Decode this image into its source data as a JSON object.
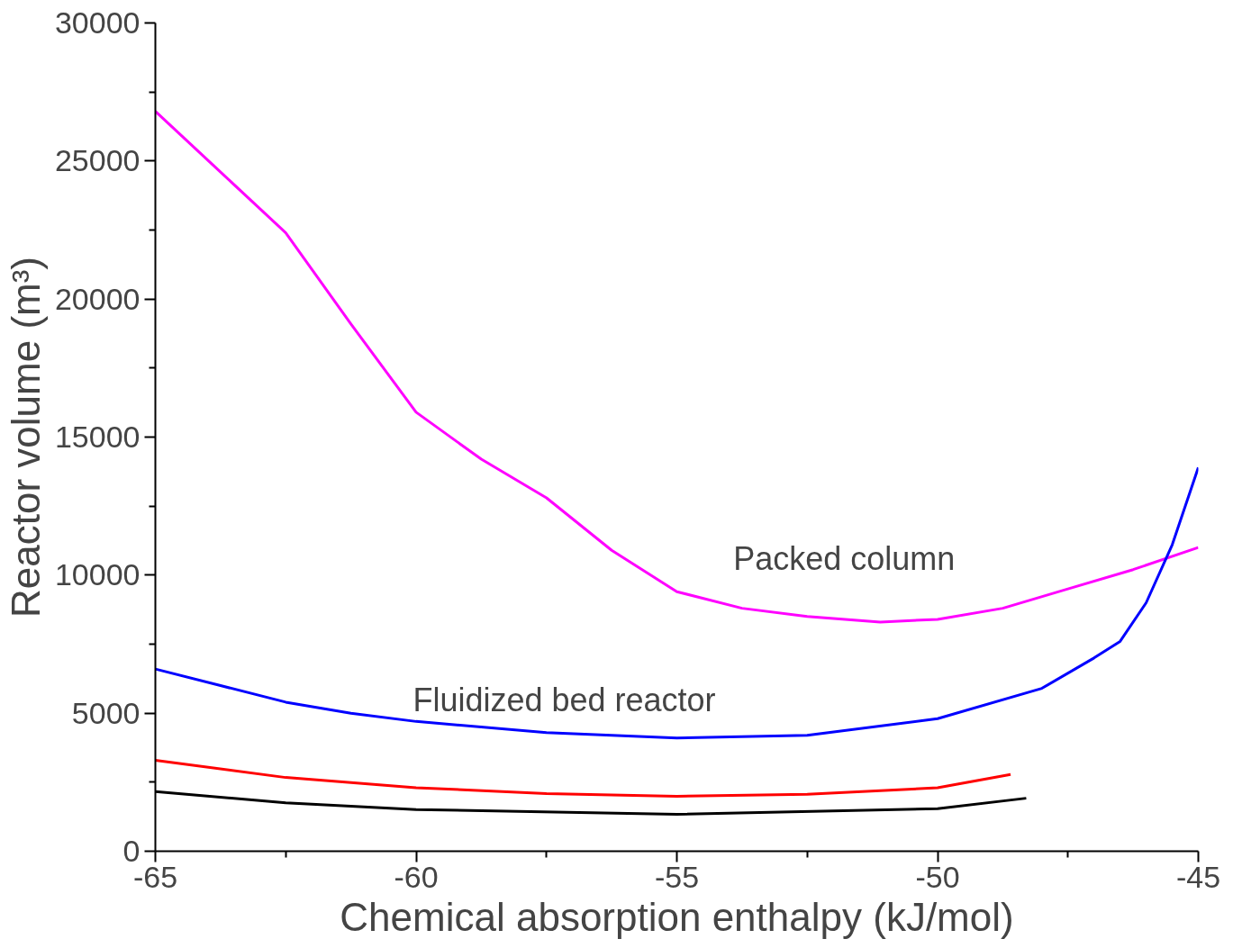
{
  "chart_data": {
    "type": "line",
    "xlabel": "Chemical absorption enthalpy (kJ/mol)",
    "ylabel": "Reactor volume (m³)",
    "xlim": [
      -65,
      -45
    ],
    "xticks": [
      -65,
      {
        "value": -62.5,
        "label": null
      },
      -60,
      {
        "value": -57.5,
        "label": null
      },
      -55,
      {
        "value": -52.5,
        "label": null
      },
      -50,
      {
        "value": -47.5,
        "label": null
      },
      -45
    ],
    "ylim": [
      0,
      30000
    ],
    "yticks": [
      0,
      {
        "value": 2500,
        "label": null
      },
      5000,
      {
        "value": 7500,
        "label": null
      },
      10000,
      {
        "value": 12500,
        "label": null
      },
      15000,
      {
        "value": 17500,
        "label": null
      },
      20000,
      {
        "value": 22500,
        "label": null
      },
      25000,
      {
        "value": 27500,
        "label": null
      },
      30000
    ],
    "grid": false,
    "line_style": "solid",
    "marker": "none",
    "series": [
      {
        "color": "#ff00ff",
        "x": [
          -65,
          -63.75,
          -62.5,
          -61.25,
          -60,
          -58.75,
          -57.5,
          -56.25,
          -55,
          -53.75,
          -52.5,
          -51.1,
          -50,
          -48.75,
          -47.5,
          -46.25,
          -45
        ],
        "values": [
          26800,
          24600,
          22400,
          19100,
          15900,
          14200,
          12800,
          10900,
          9400,
          8800,
          8500,
          8300,
          8400,
          8800,
          9500,
          10200,
          11000
        ]
      },
      {
        "color": "#0000ff",
        "x": [
          -65,
          -63.75,
          -62.5,
          -61.25,
          -60,
          -57.5,
          -55,
          -52.5,
          -50,
          -48,
          -47,
          -46.5,
          -46,
          -45.5,
          -45
        ],
        "values": [
          6600,
          6000,
          5400,
          5000,
          4700,
          4300,
          4100,
          4200,
          4800,
          5900,
          7000,
          7600,
          9000,
          11100,
          13900
        ]
      },
      {
        "color": "#ff0000",
        "x": [
          -65,
          -62.5,
          -60,
          -57.5,
          -55,
          -52.5,
          -50,
          -48.6
        ],
        "values": [
          3290,
          2670,
          2300,
          2090,
          1990,
          2060,
          2300,
          2780
        ]
      },
      {
        "color": "#000000",
        "x": [
          -65,
          -62.5,
          -60,
          -55,
          -50,
          -48.3
        ],
        "values": [
          2160,
          1750,
          1510,
          1340,
          1540,
          1920
        ]
      }
    ],
    "annotations": [
      "Packed column",
      "Fluidized bed reactor"
    ]
  }
}
